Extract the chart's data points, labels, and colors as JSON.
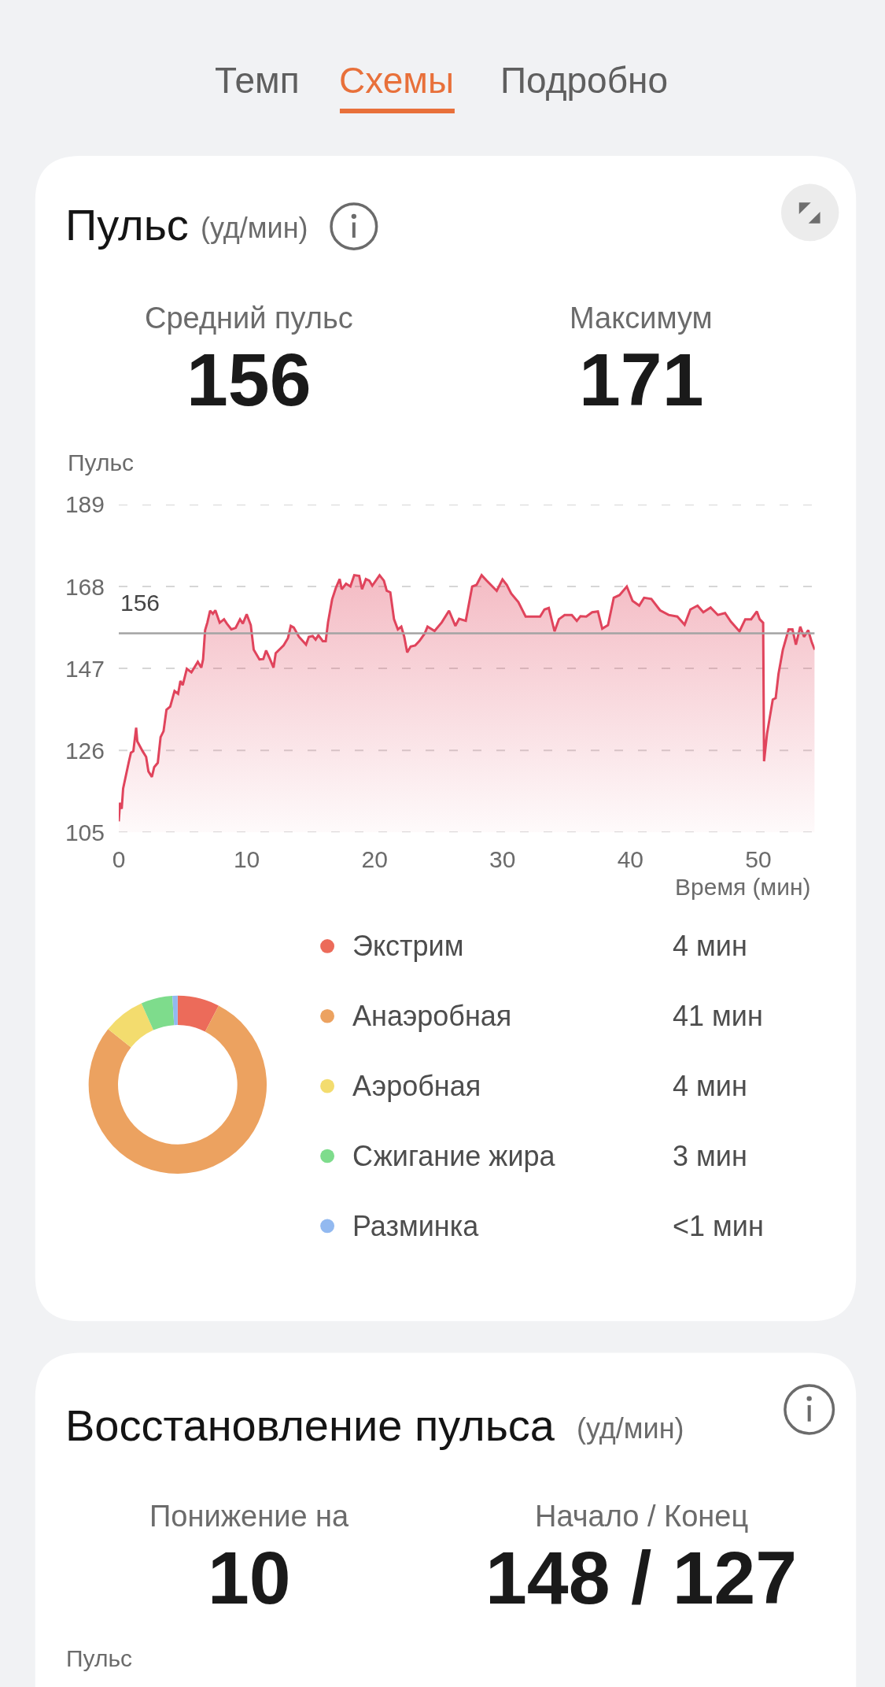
{
  "chart_data": [
    {
      "type": "other",
      "annotations": [
        "Темп",
        "Схемы",
        "Подробно"
      ],
      "colors": [
        "#5f5f5f",
        "#e8703a",
        "#5f5f5f"
      ]
    },
    {
      "type": "area",
      "title": "Пульс",
      "subtitle": "(уд/мин)",
      "annotations": [
        "Средний пульс",
        "156",
        "Максимум",
        "171"
      ],
      "ylabel": "Пульс",
      "xlabel": "Время (мин)",
      "color": "#e0445c",
      "x": [
        0,
        0.1,
        0.23,
        0.34,
        0.77,
        0.95,
        1.14,
        1.36,
        1.45,
        1.86,
        2.14,
        2.32,
        2.59,
        2.77,
        3.05,
        3.27,
        3.5,
        3.73,
        4.02,
        4.36,
        4.64,
        4.82,
        5.0,
        5.32,
        5.68,
        6.18,
        6.45,
        6.59,
        6.75,
        6.93,
        7.14,
        7.36,
        7.55,
        7.89,
        8.23,
        8.45,
        8.8,
        9.14,
        9.48,
        9.7,
        10.0,
        10.32,
        10.55,
        11.0,
        11.3,
        11.52,
        11.82,
        12.1,
        12.27,
        12.55,
        12.89,
        13.23,
        13.45,
        13.68,
        14.09,
        14.64,
        14.86,
        15.16,
        15.39,
        15.61,
        15.95,
        16.18,
        16.36,
        16.68,
        16.98,
        17.27,
        17.43,
        17.77,
        18.11,
        18.41,
        18.8,
        19.02,
        19.32,
        19.59,
        19.82,
        20.39,
        20.73,
        20.95,
        21.23,
        21.52,
        21.82,
        22.09,
        22.32,
        22.55,
        22.82,
        23.18,
        23.5,
        23.91,
        24.14,
        24.69,
        25.25,
        25.82,
        26.32,
        26.61,
        27.13,
        27.63,
        27.97,
        28.37,
        28.76,
        29.55,
        30.0,
        30.34,
        30.68,
        31.24,
        31.81,
        32.37,
        32.94,
        33.28,
        33.62,
        34.07,
        34.41,
        34.86,
        35.42,
        35.81,
        36.1,
        36.55,
        37.01,
        37.46,
        37.8,
        38.25,
        38.7,
        39.15,
        39.72,
        40.17,
        40.69,
        41.07,
        41.64,
        42.32,
        42.99,
        43.67,
        44.24,
        44.69,
        45.25,
        45.7,
        46.27,
        46.84,
        47.4,
        47.85,
        48.53,
        48.98,
        49.44,
        49.89,
        50.11,
        50.38,
        50.45,
        50.68,
        51.13,
        51.36,
        51.58,
        51.92,
        52.37,
        52.67,
        52.94,
        53.28,
        53.58,
        53.9,
        54.18,
        54.41
      ],
      "values": [
        107.8,
        112.6,
        111,
        116.2,
        122.8,
        125.4,
        125.8,
        131.8,
        128.3,
        125.8,
        124.3,
        120.6,
        119.2,
        121.7,
        122.8,
        129.4,
        130.9,
        136.4,
        137.2,
        141.2,
        140.5,
        143.8,
        142.7,
        146.9,
        146,
        148.7,
        147.2,
        149.3,
        156.8,
        158.8,
        161.8,
        161,
        161.9,
        158.7,
        159.6,
        158.5,
        157,
        157.4,
        159.6,
        158.5,
        160.9,
        158.1,
        151.8,
        149.3,
        149.4,
        151.6,
        149.4,
        147.2,
        150.9,
        151.8,
        152.9,
        154.8,
        157.9,
        157.5,
        155.1,
        153.1,
        155.1,
        155.3,
        154.4,
        155.5,
        154,
        154,
        158.8,
        164.7,
        167.7,
        169.9,
        167.3,
        168.7,
        168,
        170.9,
        170.7,
        167.3,
        169.9,
        169.5,
        168.2,
        170.9,
        169.5,
        166.9,
        166.5,
        159.6,
        157,
        157.7,
        155.1,
        151.1,
        152.6,
        152.9,
        154,
        155.9,
        157.7,
        156.6,
        158.8,
        161.8,
        157.9,
        159.7,
        159.2,
        168,
        168.4,
        170.9,
        169.5,
        166.9,
        169.8,
        168.4,
        166.2,
        164,
        160.3,
        160.3,
        160.3,
        162.1,
        162.5,
        156.5,
        159.6,
        160.7,
        160.7,
        159.2,
        160.4,
        160.3,
        161.4,
        161.6,
        157.2,
        158.1,
        165.1,
        165.8,
        168,
        164.3,
        163.1,
        165.1,
        164.8,
        161.9,
        160.7,
        160.3,
        158.2,
        162.1,
        163.1,
        161.4,
        162.6,
        160.7,
        161.2,
        159,
        156.5,
        159.6,
        159.6,
        161.6,
        159.6,
        158.7,
        123.2,
        130.2,
        139,
        139.4,
        145.6,
        151.8,
        157,
        157,
        153.1,
        157.7,
        155.1,
        156.8,
        153.7,
        151.8
      ],
      "xlim": [
        0,
        54.41
      ],
      "xticks": [
        0,
        10,
        20,
        30,
        40,
        50
      ],
      "ylim": [
        105,
        189
      ],
      "yticks": [
        105,
        126,
        147,
        168,
        189
      ],
      "grid": "y",
      "ref_lines": [
        {
          "axis": "y",
          "value": 156,
          "label": "156",
          "color": "#a3a3a3"
        }
      ]
    },
    {
      "type": "donut",
      "categories": [
        "Экстрим",
        "Анаэробная",
        "Аэробная",
        "Сжигание жира",
        "Разминка"
      ],
      "values": [
        4,
        41,
        4,
        3,
        0.5
      ],
      "value_labels": [
        "4 мин",
        "41 мин",
        "4 мин",
        "3 мин",
        "<1 мин"
      ],
      "colors": [
        "#ec6b5a",
        "#eca260",
        "#f3dc6e",
        "#7edc8c",
        "#92b9f0"
      ],
      "legend": "right"
    },
    {
      "type": "other",
      "title": "Восстановление пульса",
      "subtitle": "(уд/мин)",
      "annotations": [
        "Понижение на",
        "10",
        "Начало / Конец",
        "148 / 127"
      ],
      "ylabel": "Пульс"
    }
  ]
}
